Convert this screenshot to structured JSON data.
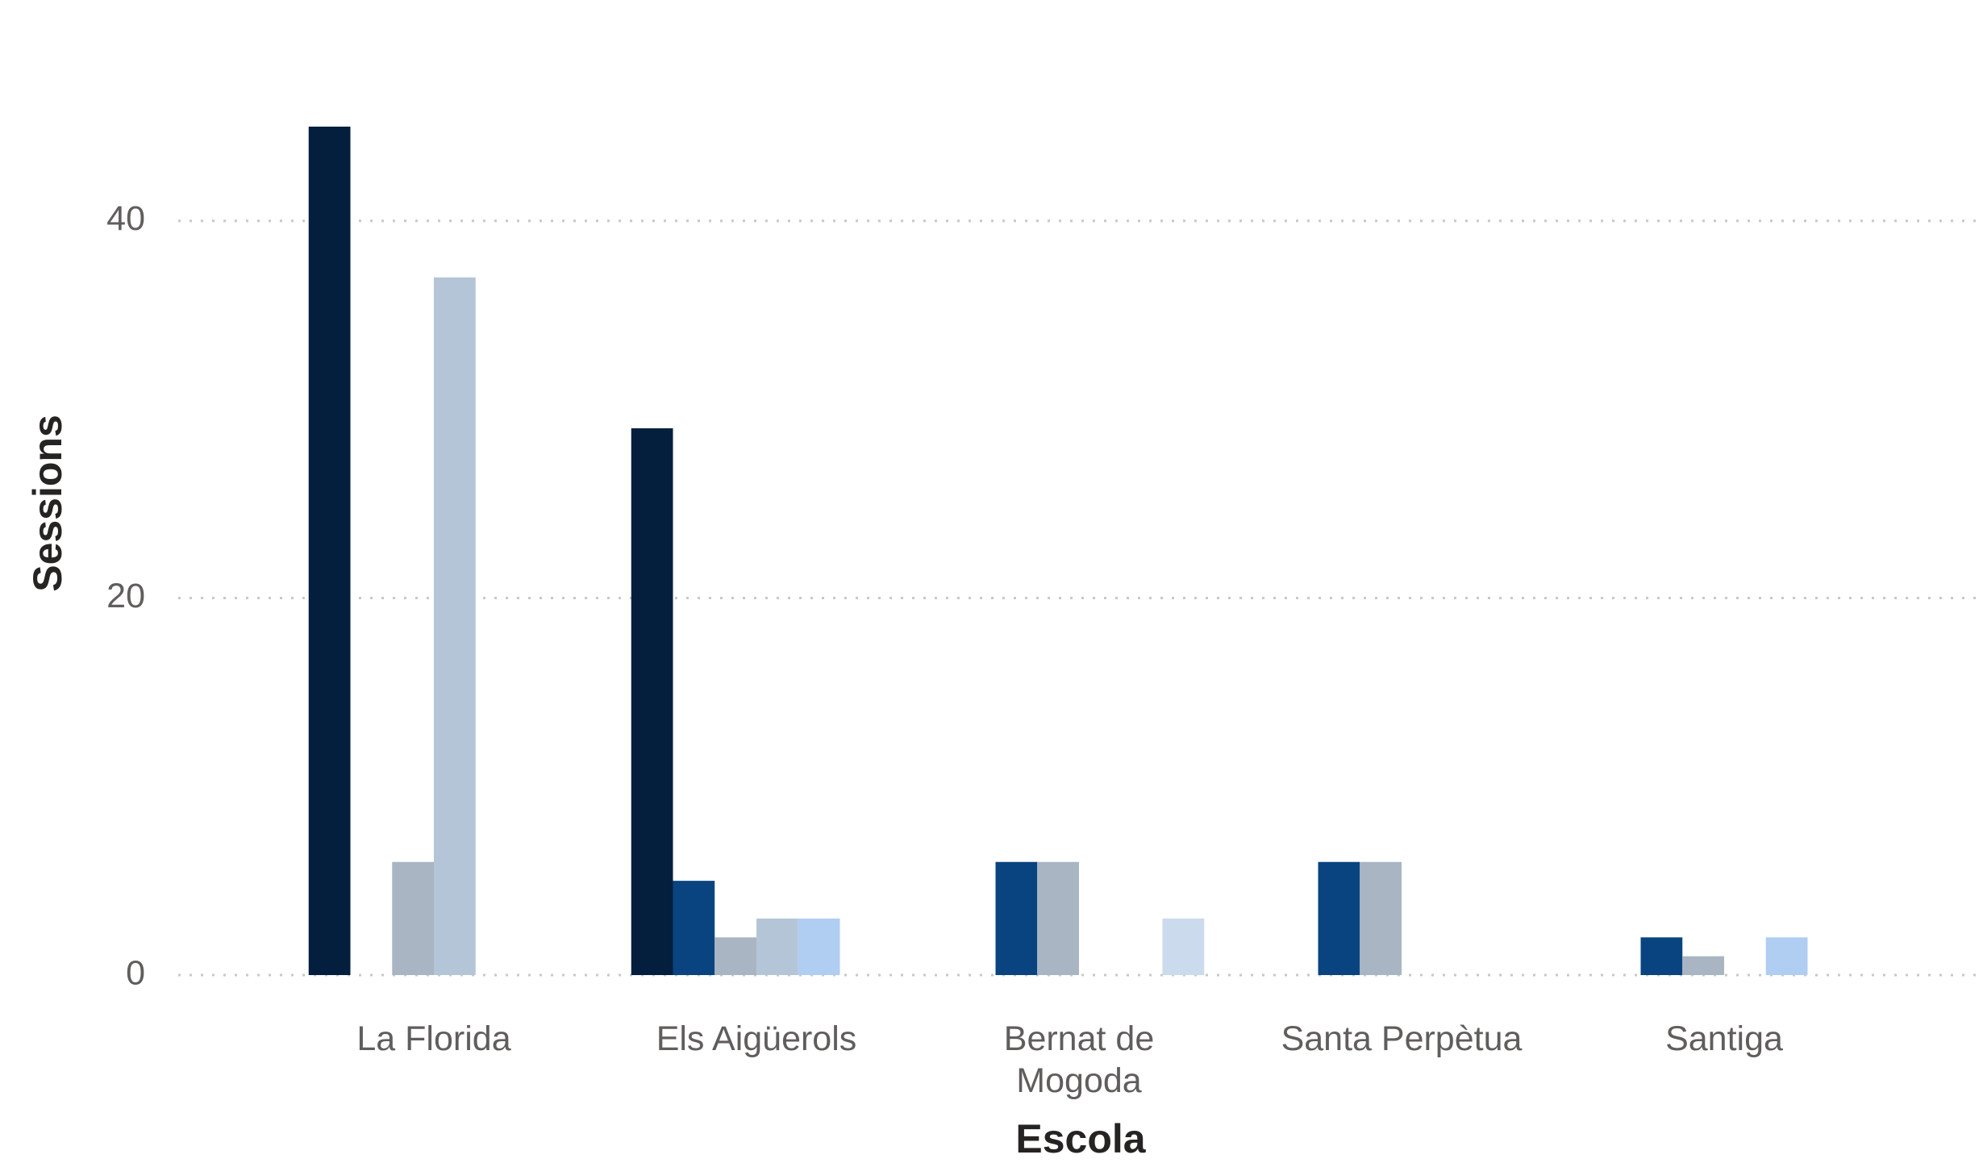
{
  "chart_data": {
    "type": "bar",
    "x_label": "Escola",
    "y_label": "Sessions",
    "categories": [
      "La Florida",
      "Els Aigüerols",
      "Bernat de Mogoda",
      "Santa Perpètua",
      "Santiga"
    ],
    "series": [
      {
        "color": "#041e3e",
        "values": [
          45,
          29,
          0,
          0,
          0
        ]
      },
      {
        "color": "#0a4480",
        "values": [
          0,
          5,
          6,
          6,
          2
        ]
      },
      {
        "color": "#a9b5c2",
        "values": [
          6,
          2,
          6,
          6,
          1
        ]
      },
      {
        "color": "#b5c5d8",
        "values": [
          37,
          3,
          0,
          0,
          0
        ]
      },
      {
        "color": "#b0cdf2",
        "values": [
          0,
          3,
          0,
          0,
          2
        ]
      },
      {
        "color": "#ccdaed",
        "values": [
          0,
          0,
          3,
          0,
          0
        ]
      }
    ],
    "ylim": [
      0,
      45
    ],
    "yticks": [
      0,
      20,
      40
    ],
    "grid": true
  }
}
